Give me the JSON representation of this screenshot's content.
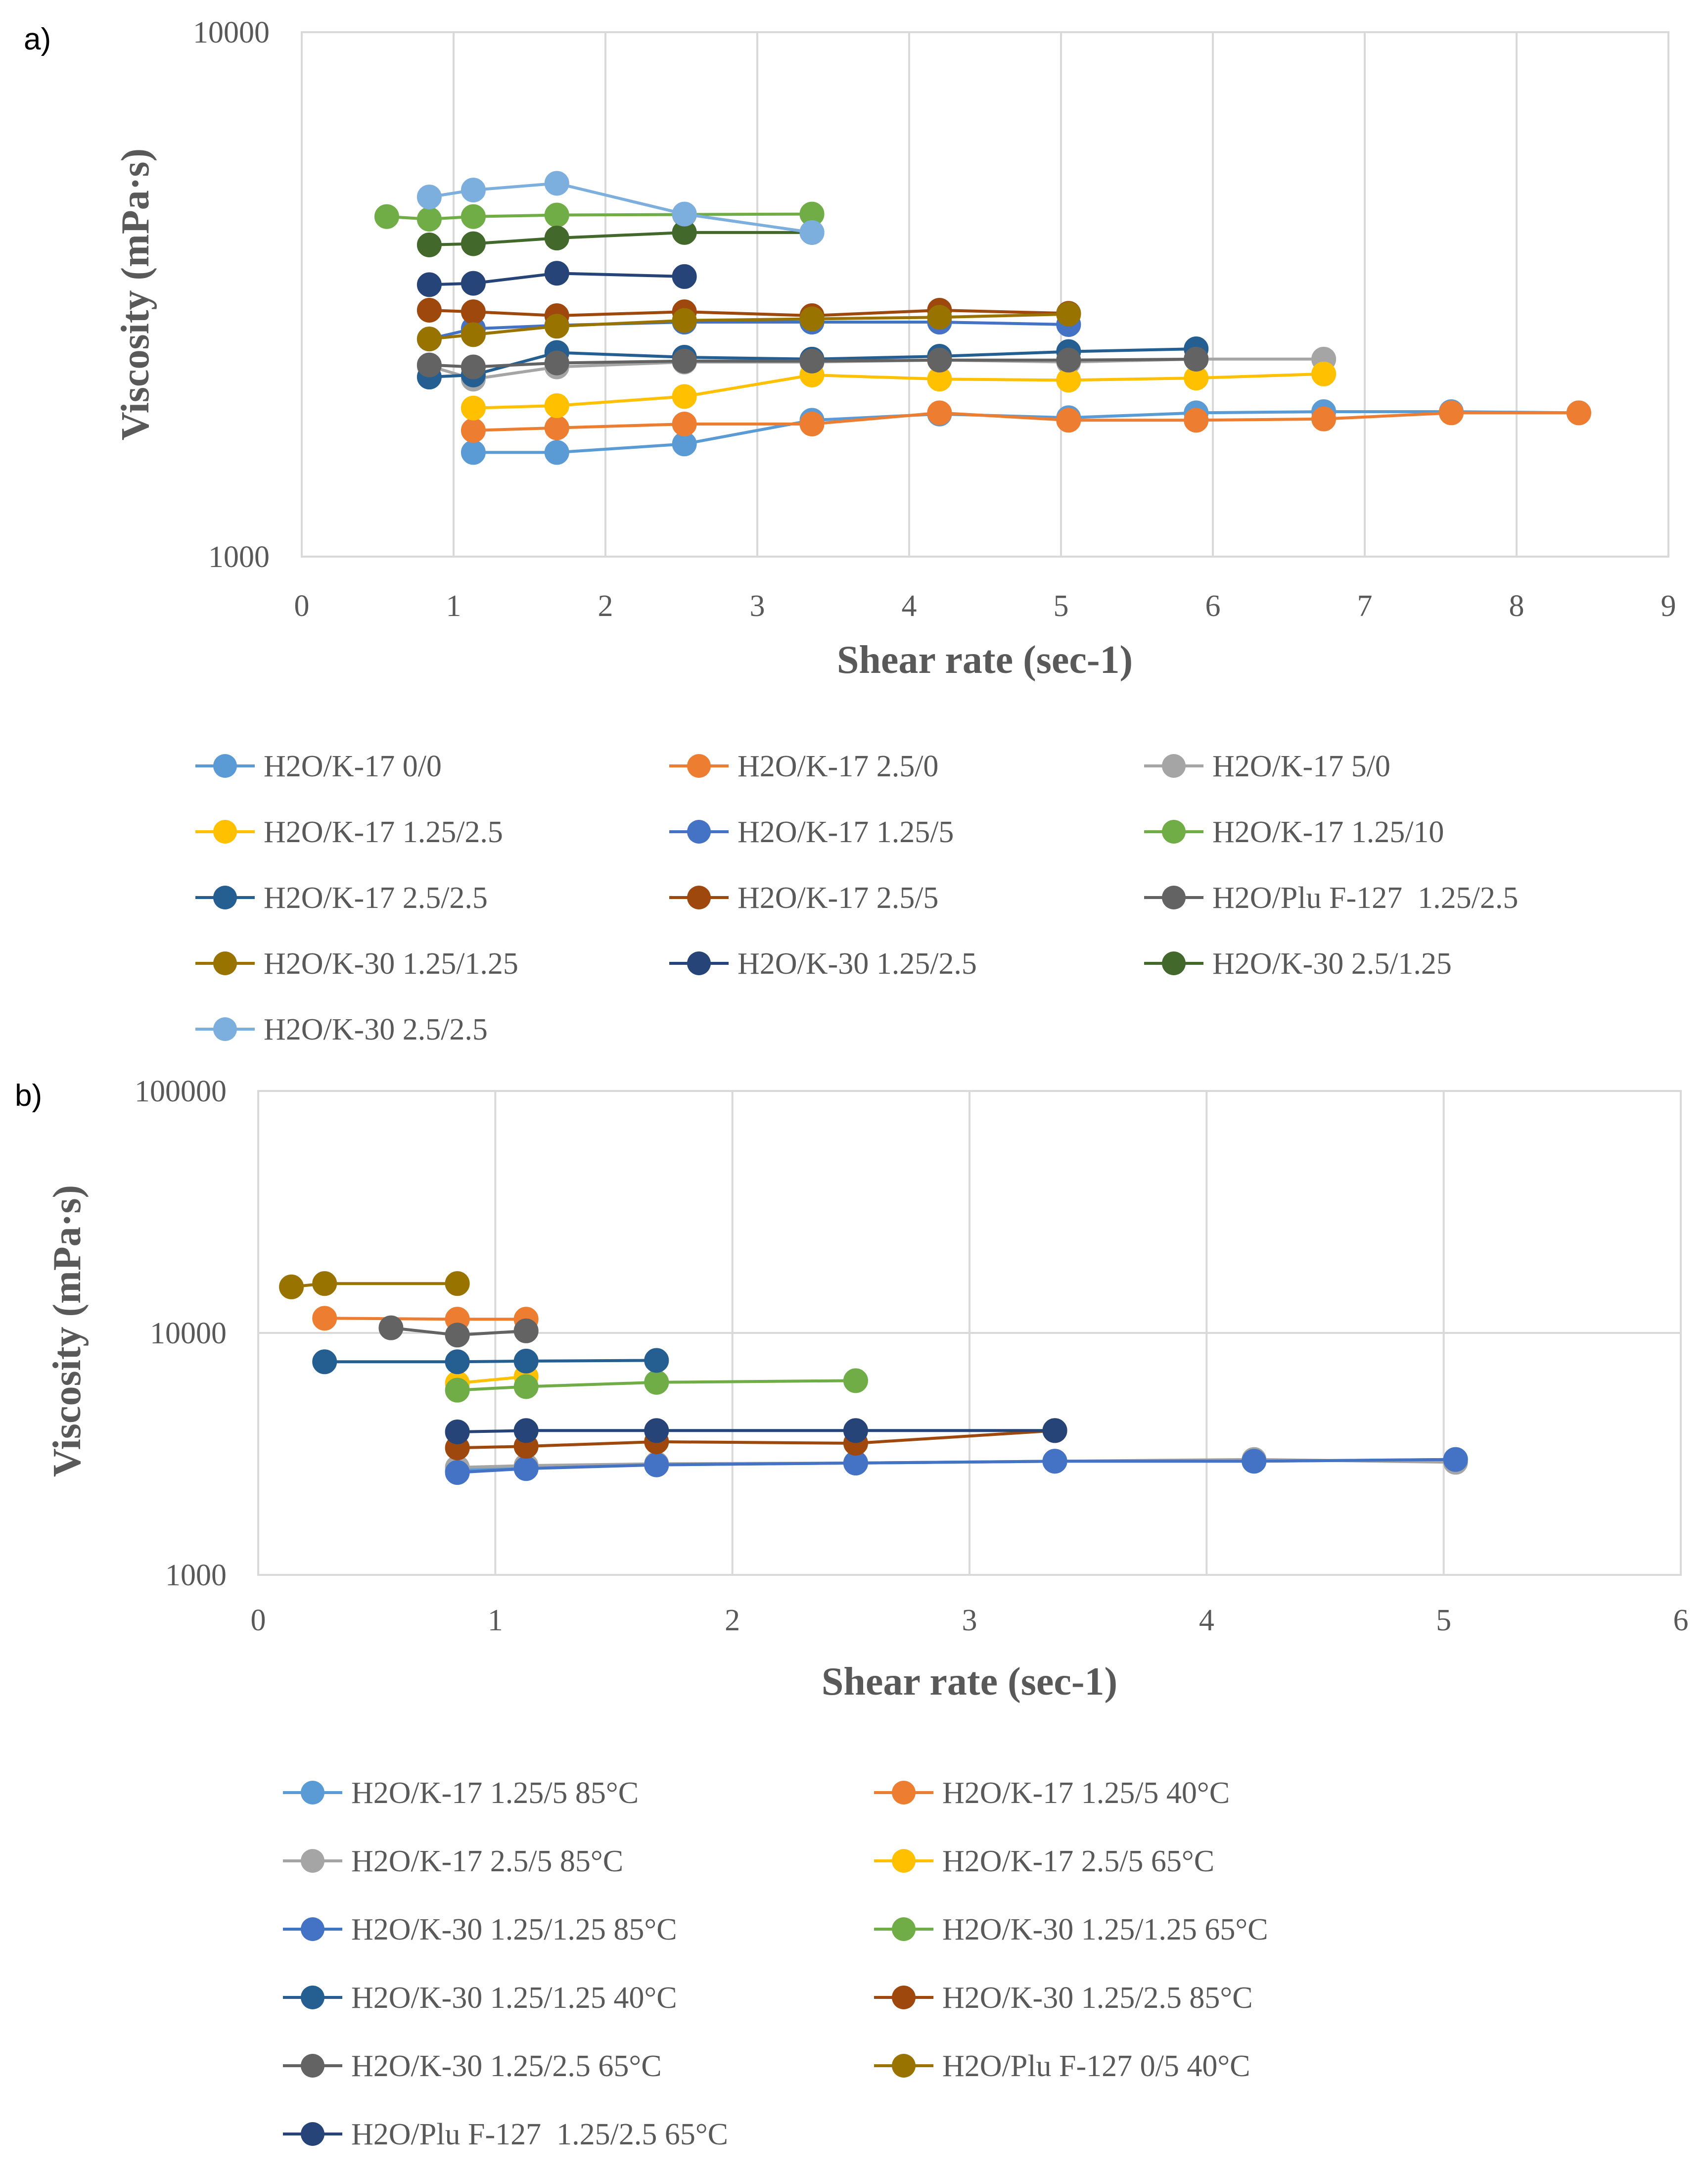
{
  "chart_data": [
    {
      "type": "line",
      "panel": "a)",
      "title": "",
      "xlabel": "Shear rate (sec-1)",
      "ylabel": "Viscosity (mPa·s)",
      "xlim": [
        0,
        9
      ],
      "ylim": [
        1000,
        10000
      ],
      "yscale": "log",
      "x_ticks": [
        "0",
        "1",
        "2",
        "3",
        "4",
        "5",
        "6",
        "7",
        "8",
        "9"
      ],
      "y_ticks": [
        "1000",
        "10000"
      ],
      "legend_position": "bottom",
      "series": [
        {
          "name": "H2O/K-17 0/0",
          "color": "#5B9BD5",
          "x": [
            1.13,
            1.68,
            2.52,
            3.36,
            4.2,
            5.05,
            5.89,
            6.73,
            7.57,
            8.41
          ],
          "y": [
            1580,
            1580,
            1640,
            1820,
            1870,
            1840,
            1880,
            1890,
            1890,
            1880
          ]
        },
        {
          "name": "H2O/K-17 2.5/0",
          "color": "#ED7D31",
          "x": [
            1.13,
            1.68,
            2.52,
            3.36,
            4.2,
            5.05,
            5.89,
            6.73,
            7.57,
            8.41
          ],
          "y": [
            1740,
            1760,
            1790,
            1790,
            1880,
            1820,
            1820,
            1830,
            1880,
            1880
          ]
        },
        {
          "name": "H2O/K-17 5/0",
          "color": "#A5A5A5",
          "x": [
            0.84,
            1.13,
            1.68,
            2.52,
            3.36,
            4.2,
            5.05,
            5.89,
            6.73
          ],
          "y": [
            2310,
            2180,
            2300,
            2350,
            2350,
            2370,
            2350,
            2380,
            2380
          ]
        },
        {
          "name": "H2O/K-17 1.25/2.5",
          "color": "#FFC000",
          "x": [
            1.13,
            1.68,
            2.52,
            3.36,
            4.2,
            5.05,
            5.89,
            6.73
          ],
          "y": [
            1920,
            1940,
            2020,
            2220,
            2180,
            2170,
            2190,
            2230
          ]
        },
        {
          "name": "H2O/K-17 1.25/5",
          "color": "#4472C4",
          "x": [
            0.84,
            1.13,
            1.68,
            2.52,
            3.36,
            4.2,
            5.05
          ],
          "y": [
            2600,
            2720,
            2760,
            2800,
            2800,
            2800,
            2770
          ]
        },
        {
          "name": "H2O/K-17 1.25/10",
          "color": "#70AD47",
          "x": [
            0.56,
            0.84,
            1.13,
            1.68,
            2.52,
            3.36
          ],
          "y": [
            4450,
            4400,
            4450,
            4480,
            4490,
            4500
          ]
        },
        {
          "name": "H2O/K-17 2.5/2.5",
          "color": "#255E91",
          "x": [
            0.84,
            1.13,
            1.68,
            2.52,
            3.36,
            4.2,
            5.05,
            5.89
          ],
          "y": [
            2200,
            2220,
            2450,
            2400,
            2380,
            2410,
            2460,
            2490
          ]
        },
        {
          "name": "H2O/K-17 2.5/5",
          "color": "#9E480E",
          "x": [
            0.84,
            1.13,
            1.68,
            2.52,
            3.36,
            4.2,
            5.05
          ],
          "y": [
            2950,
            2930,
            2880,
            2930,
            2880,
            2950,
            2910
          ]
        },
        {
          "name": "H2O/Plu F-127  1.25/2.5",
          "color": "#636363",
          "x": [
            0.84,
            1.13,
            1.68,
            2.52,
            3.36,
            4.2,
            5.05,
            5.89
          ],
          "y": [
            2320,
            2300,
            2340,
            2360,
            2360,
            2370,
            2370,
            2380
          ]
        },
        {
          "name": "H2O/K-30 1.25/1.25",
          "color": "#997300",
          "x": [
            0.84,
            1.13,
            1.68,
            2.52,
            3.36,
            4.2,
            5.05
          ],
          "y": [
            2600,
            2650,
            2750,
            2820,
            2840,
            2860,
            2900
          ]
        },
        {
          "name": "H2O/K-30 1.25/2.5",
          "color": "#264478",
          "x": [
            0.84,
            1.13,
            1.68,
            2.52
          ],
          "y": [
            3300,
            3320,
            3470,
            3420
          ]
        },
        {
          "name": "H2O/K-30 2.5/1.25",
          "color": "#43682B",
          "x": [
            0.84,
            1.13,
            1.68,
            2.52,
            3.36
          ],
          "y": [
            3930,
            3950,
            4050,
            4150,
            4150
          ]
        },
        {
          "name": "H2O/K-30 2.5/2.5",
          "color": "#7CAFDD",
          "x": [
            0.84,
            1.13,
            1.68,
            2.52,
            3.36
          ],
          "y": [
            4850,
            5000,
            5150,
            4500,
            4150
          ]
        }
      ]
    },
    {
      "type": "line",
      "panel": "b)",
      "title": "",
      "xlabel": "Shear rate (sec-1)",
      "ylabel": "Viscosity (mPa·s)",
      "xlim": [
        0,
        6
      ],
      "ylim": [
        1000,
        100000
      ],
      "yscale": "log",
      "x_ticks": [
        "0",
        "1",
        "2",
        "3",
        "4",
        "5",
        "6"
      ],
      "y_ticks": [
        "1000",
        "10000",
        "100000"
      ],
      "legend_position": "bottom",
      "series": [
        {
          "name": "H2O/K-17 1.25/5 85°C",
          "color": "#5B9BD5",
          "x": [
            0.84,
            1.13,
            1.68,
            2.52,
            3.36,
            4.2,
            5.05
          ],
          "y": [
            2700,
            2800,
            2850,
            2900,
            2950,
            2950,
            3000
          ]
        },
        {
          "name": "H2O/K-17 1.25/5 40°C",
          "color": "#ED7D31",
          "x": [
            0.28,
            0.84,
            1.13
          ],
          "y": [
            11500,
            11400,
            11400
          ]
        },
        {
          "name": "H2O/K-17 2.5/5 85°C",
          "color": "#A5A5A5",
          "x": [
            0.84,
            1.13,
            1.68,
            2.52,
            3.36,
            4.2,
            5.05
          ],
          "y": [
            2780,
            2830,
            2880,
            2900,
            2950,
            3000,
            2920
          ]
        },
        {
          "name": "H2O/K-17 2.5/5 65°C",
          "color": "#FFC000",
          "x": [
            0.84,
            1.13
          ],
          "y": [
            6200,
            6600
          ]
        },
        {
          "name": "H2O/K-30 1.25/1.25 85°C",
          "color": "#4472C4",
          "x": [
            0.84,
            1.13,
            1.68,
            2.52,
            3.36,
            4.2,
            5.05
          ],
          "y": [
            2650,
            2750,
            2850,
            2900,
            2950,
            2950,
            3000
          ]
        },
        {
          "name": "H2O/K-30 1.25/1.25 65°C",
          "color": "#70AD47",
          "x": [
            0.84,
            1.13,
            1.68,
            2.52
          ],
          "y": [
            5800,
            6000,
            6250,
            6350
          ]
        },
        {
          "name": "H2O/K-30 1.25/1.25 40°C",
          "color": "#255E91",
          "x": [
            0.28,
            0.84,
            1.13,
            1.68
          ],
          "y": [
            7600,
            7600,
            7650,
            7700
          ]
        },
        {
          "name": "H2O/K-30 1.25/2.5 85°C",
          "color": "#9E480E",
          "x": [
            0.84,
            1.13,
            1.68,
            2.52,
            3.36
          ],
          "y": [
            3350,
            3400,
            3550,
            3500,
            3950
          ]
        },
        {
          "name": "H2O/K-30 1.25/2.5 65°C",
          "color": "#636363",
          "x": [
            0.56,
            0.84,
            1.13
          ],
          "y": [
            10500,
            9800,
            10200
          ]
        },
        {
          "name": "H2O/Plu F-127 0/5 40°C",
          "color": "#997300",
          "x": [
            0.14,
            0.28,
            0.84
          ],
          "y": [
            15500,
            16000,
            16000
          ]
        },
        {
          "name": "H2O/Plu F-127  1.25/2.5 65°C",
          "color": "#264478",
          "x": [
            0.84,
            1.13,
            1.68,
            2.52,
            3.36
          ],
          "y": [
            3900,
            3950,
            3950,
            3950,
            3950
          ]
        }
      ]
    }
  ]
}
